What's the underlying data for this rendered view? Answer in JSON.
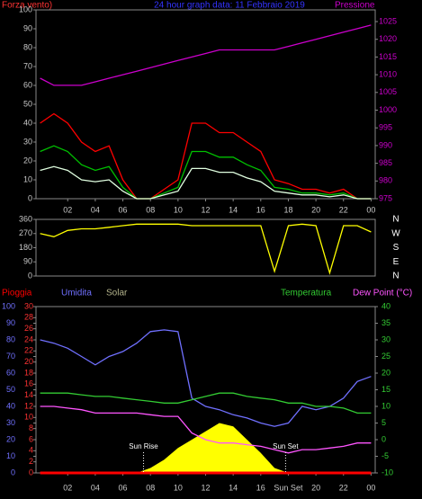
{
  "chart_data": [
    {
      "type": "line",
      "title": "24 hour graph data: 11 Febbraio 2019",
      "ylabel": "Forza vento)",
      "x": [
        0,
        1,
        2,
        3,
        4,
        5,
        6,
        7,
        8,
        9,
        10,
        11,
        12,
        13,
        14,
        15,
        16,
        17,
        18,
        19,
        20,
        21,
        22,
        23,
        24
      ],
      "xlim": [
        -0.3,
        24.3
      ],
      "xticks": [
        {
          "value": 2,
          "label": "02"
        },
        {
          "value": 4,
          "label": "04"
        },
        {
          "value": 6,
          "label": "06"
        },
        {
          "value": 8,
          "label": "08"
        },
        10,
        12,
        14,
        16,
        18,
        20,
        22,
        {
          "value": 24,
          "label": "00"
        }
      ],
      "ylim": [
        0,
        100
      ],
      "yticks": [
        0,
        10,
        20,
        30,
        40,
        50,
        60,
        70,
        80,
        90,
        100
      ],
      "y2lim": [
        975,
        1028.3
      ],
      "y2ticks": [
        975,
        980,
        985,
        990,
        995,
        1000,
        1005,
        1010,
        1015,
        1020,
        1025
      ],
      "series": [
        {
          "color": "#ff0000",
          "values": [
            40,
            45,
            40,
            30,
            25,
            28,
            10,
            0,
            0,
            5,
            10,
            40,
            40,
            35,
            35,
            30,
            25,
            10,
            8,
            5,
            5,
            3,
            5,
            0,
            0
          ]
        },
        {
          "color": "#00c000",
          "values": [
            25,
            28,
            25,
            18,
            15,
            17,
            6,
            0,
            0,
            3,
            6,
            25,
            25,
            22,
            22,
            18,
            15,
            6,
            5,
            3,
            3,
            2,
            3,
            0,
            0
          ]
        },
        {
          "color": "#e0ffe0",
          "values": [
            15,
            17,
            15,
            10,
            9,
            10,
            4,
            0,
            0,
            2,
            4,
            16,
            16,
            14,
            14,
            11,
            9,
            4,
            3,
            2,
            2,
            1,
            2,
            0,
            0
          ]
        },
        {
          "name": "Pressione",
          "color": "#cc00cc",
          "axis": "y2",
          "values": [
            1009,
            1007,
            1007,
            1007,
            1008,
            1009,
            1010,
            1011,
            1012,
            1013,
            1014,
            1015,
            1016,
            1017,
            1017,
            1017,
            1017,
            1017,
            1018,
            1019,
            1020,
            1021,
            1022,
            1023,
            1024
          ]
        }
      ]
    },
    {
      "type": "line",
      "x": [
        0,
        1,
        2,
        3,
        4,
        5,
        6,
        7,
        8,
        9,
        10,
        11,
        12,
        13,
        14,
        15,
        16,
        17,
        18,
        19,
        20,
        21,
        22,
        23,
        24
      ],
      "xlim": [
        -0.3,
        24.3
      ],
      "ylim": [
        0,
        360
      ],
      "yticks": [
        0,
        90,
        180,
        270,
        360
      ],
      "compass_ticks": [
        {
          "value": 360,
          "label": "N"
        },
        {
          "value": 270,
          "label": "W"
        },
        {
          "value": 180,
          "label": "S"
        },
        {
          "value": 90,
          "label": "E"
        },
        {
          "value": 0,
          "label": "N"
        }
      ],
      "series": [
        {
          "color": "#ffff00",
          "values": [
            270,
            250,
            290,
            300,
            300,
            310,
            320,
            330,
            330,
            330,
            330,
            320,
            320,
            320,
            320,
            320,
            320,
            30,
            320,
            330,
            320,
            20,
            320,
            320,
            280
          ]
        }
      ]
    },
    {
      "type": "line",
      "x": [
        0,
        1,
        2,
        3,
        4,
        5,
        6,
        7,
        8,
        9,
        10,
        11,
        12,
        13,
        14,
        15,
        16,
        17,
        18,
        19,
        20,
        21,
        22,
        23,
        24
      ],
      "xlim": [
        -0.3,
        24.3
      ],
      "xticks": [
        {
          "value": 2,
          "label": "02"
        },
        {
          "value": 4,
          "label": "04"
        },
        {
          "value": 6,
          "label": "06"
        },
        {
          "value": 8,
          "label": "08"
        },
        10,
        12,
        14,
        16,
        {
          "value": 18,
          "label": "Sun Set"
        },
        20,
        22,
        {
          "value": 24,
          "label": "00"
        }
      ],
      "ylim": [
        0,
        100
      ],
      "yticks": [
        0,
        10,
        20,
        30,
        40,
        50,
        60,
        70,
        80,
        90,
        100
      ],
      "y2lim": [
        0,
        30
      ],
      "y2ticks": [
        0,
        2,
        4,
        6,
        8,
        10,
        12,
        14,
        16,
        18,
        20,
        22,
        24,
        26,
        28,
        30
      ],
      "y3lim": [
        -10,
        40
      ],
      "y3ticks": [
        -10,
        -5,
        0,
        5,
        10,
        15,
        20,
        25,
        30,
        35,
        40
      ],
      "annotations": [
        {
          "label": "Sun Rise",
          "x": 7.5
        },
        {
          "label": "Sun Set",
          "x": 17.8
        }
      ],
      "series": [
        {
          "name": "Pioggia",
          "color": "#ff0000",
          "axis": "y2",
          "values": [
            0,
            0,
            0,
            0,
            0,
            0,
            0,
            0,
            0,
            0,
            0,
            0,
            0,
            0,
            0,
            0,
            0,
            0,
            0,
            0,
            0,
            0,
            0,
            0,
            0
          ]
        },
        {
          "name": "Umidita",
          "color": "#7070ff",
          "values": [
            80,
            78,
            75,
            70,
            65,
            70,
            73,
            78,
            85,
            86,
            85,
            45,
            40,
            38,
            35,
            33,
            30,
            28,
            30,
            40,
            38,
            40,
            45,
            55,
            58
          ]
        },
        {
          "name": "Solar",
          "color": "#b4b48c",
          "fill": "#ffff00",
          "values": [
            0,
            0,
            0,
            0,
            0,
            0,
            0,
            0,
            3,
            8,
            15,
            20,
            25,
            30,
            28,
            20,
            12,
            3,
            0,
            0,
            0,
            0,
            0,
            0,
            0
          ]
        },
        {
          "name": "Temperatura",
          "color": "#33cc33",
          "axis": "y3",
          "values": [
            14,
            14,
            14,
            13.5,
            13,
            13,
            12.5,
            12,
            11.5,
            11,
            11,
            12,
            13,
            14,
            14,
            13,
            12.5,
            12,
            11,
            11,
            10,
            10,
            9.5,
            8,
            8
          ]
        },
        {
          "name": "Dew Point (°C)",
          "color": "#ff55ff",
          "axis": "y3",
          "values": [
            10,
            10,
            9.5,
            9,
            8,
            8,
            8,
            8,
            7.5,
            7,
            7,
            2,
            0,
            -1,
            -1,
            -1.5,
            -2,
            -3,
            -4,
            -3,
            -3,
            -2.5,
            -2,
            -1,
            -1
          ]
        }
      ]
    }
  ]
}
